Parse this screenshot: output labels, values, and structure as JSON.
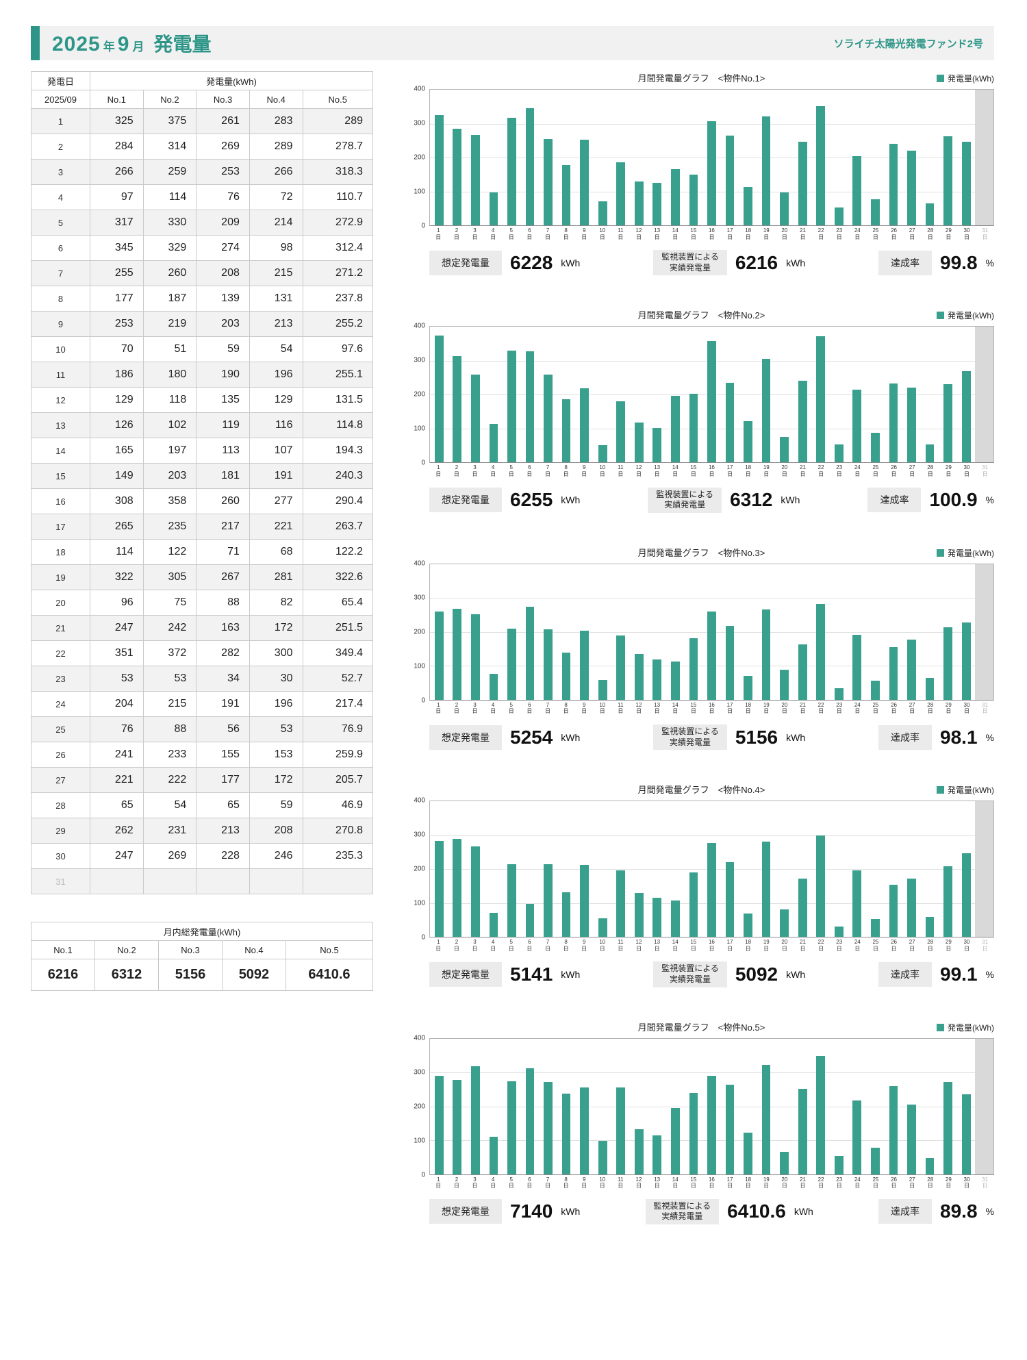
{
  "colors": {
    "accent": "#3AA08E",
    "accent_dark": "#2E9688",
    "disabled_band": "#D9D9D9"
  },
  "page": {
    "title": {
      "year": "2025",
      "year_unit": "年",
      "month": "9",
      "month_unit": "月",
      "label": "発電量"
    },
    "brand": "ソライチ太陽光発電ファンド2号"
  },
  "table": {
    "date_header": "発電日",
    "generation_header": "発電量(kWh)",
    "month": "2025/09",
    "columns": [
      "No.1",
      "No.2",
      "No.3",
      "No.4",
      "No.5"
    ],
    "totals_title": "月内総発電量(kWh)",
    "totals": [
      "6216",
      "6312",
      "5156",
      "5092",
      "6410.6"
    ]
  },
  "labels": {
    "expected": "想定発電量",
    "actual_line1": "監視装置による",
    "actual_line2": "実績発電量",
    "rate": "達成率",
    "unit_kwh": "kWh",
    "unit_pct": "%",
    "x_unit": "日"
  },
  "charts": [
    {
      "title": "月間発電量グラフ　<物件No.1>",
      "expected": "6228",
      "actual": "6216",
      "rate": "99.8"
    },
    {
      "title": "月間発電量グラフ　<物件No.2>",
      "expected": "6255",
      "actual": "6312",
      "rate": "100.9"
    },
    {
      "title": "月間発電量グラフ　<物件No.3>",
      "expected": "5254",
      "actual": "5156",
      "rate": "98.1"
    },
    {
      "title": "月間発電量グラフ　<物件No.4>",
      "expected": "5141",
      "actual": "5092",
      "rate": "99.1"
    },
    {
      "title": "月間発電量グラフ　<物件No.5>",
      "expected": "7140",
      "actual": "6410.6",
      "rate": "89.8"
    }
  ],
  "chart_data": {
    "type": "bar",
    "title": "月間発電量グラフ",
    "legend": "発電量(kWh)",
    "legend_position": "top-right",
    "grid": true,
    "ylim": [
      0,
      400
    ],
    "yticks": [
      0,
      100,
      200,
      300,
      400
    ],
    "categories": [
      1,
      2,
      3,
      4,
      5,
      6,
      7,
      8,
      9,
      10,
      11,
      12,
      13,
      14,
      15,
      16,
      17,
      18,
      19,
      20,
      21,
      22,
      23,
      24,
      25,
      26,
      27,
      28,
      29,
      30,
      31
    ],
    "series": [
      {
        "name": "No.1",
        "values": [
          325,
          284,
          266,
          97,
          317,
          345,
          255,
          177,
          253,
          70,
          186,
          129,
          126,
          165,
          149,
          308,
          265,
          114,
          322,
          96,
          247,
          351,
          53,
          204,
          76,
          241,
          221,
          65,
          262,
          247,
          null
        ]
      },
      {
        "name": "No.2",
        "values": [
          375,
          314,
          259,
          114,
          330,
          329,
          260,
          187,
          219,
          51,
          180,
          118,
          102,
          197,
          203,
          358,
          235,
          122,
          305,
          75,
          242,
          372,
          53,
          215,
          88,
          233,
          222,
          54,
          231,
          269,
          null
        ]
      },
      {
        "name": "No.3",
        "values": [
          261,
          269,
          253,
          76,
          209,
          274,
          208,
          139,
          203,
          59,
          190,
          135,
          119,
          113,
          181,
          260,
          217,
          71,
          267,
          88,
          163,
          282,
          34,
          191,
          56,
          155,
          177,
          65,
          213,
          228,
          null
        ]
      },
      {
        "name": "No.4",
        "values": [
          283,
          289,
          266,
          72,
          214,
          98,
          215,
          131,
          213,
          54,
          196,
          129,
          116,
          107,
          191,
          277,
          221,
          68,
          281,
          82,
          172,
          300,
          30,
          196,
          53,
          153,
          172,
          59,
          208,
          246,
          null
        ]
      },
      {
        "name": "No.5",
        "values": [
          289,
          278.7,
          318.3,
          110.7,
          272.9,
          312.4,
          271.2,
          237.8,
          255.2,
          97.6,
          255.1,
          131.5,
          114.8,
          194.3,
          240.3,
          290.4,
          263.7,
          122.2,
          322.6,
          65.4,
          251.5,
          349.4,
          52.7,
          217.4,
          76.9,
          259.9,
          205.7,
          46.9,
          270.8,
          235.3,
          null
        ]
      }
    ]
  }
}
